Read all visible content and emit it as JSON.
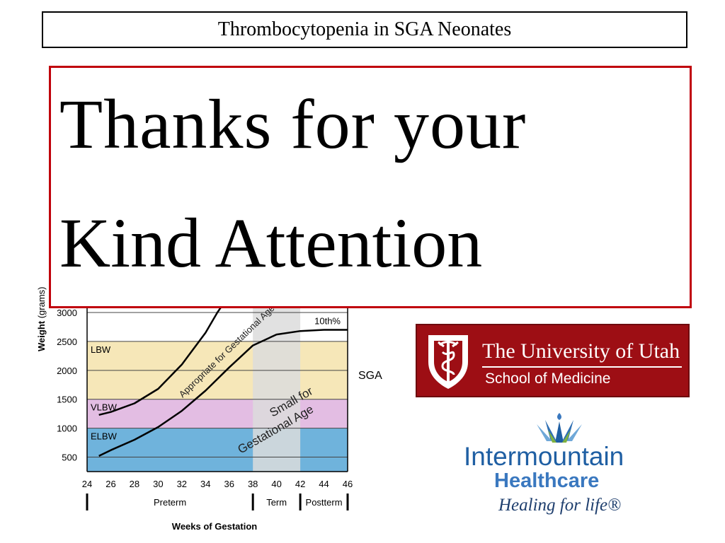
{
  "slide": {
    "header_title": "Thrombocytopenia in SGA Neonates",
    "thanks_line1": "Thanks for your",
    "thanks_line2": "Kind Attention"
  },
  "chart_data": {
    "type": "line",
    "title": "",
    "xlabel": "Weeks of Gestation",
    "ylabel": "Weight (grams)",
    "xlim": [
      24,
      46
    ],
    "ylim": [
      250,
      3000
    ],
    "x_ticks": [
      24,
      26,
      28,
      30,
      32,
      34,
      36,
      38,
      40,
      42,
      44,
      46
    ],
    "y_ticks": [
      500,
      1000,
      1500,
      2000,
      2500,
      3000
    ],
    "bands": [
      {
        "label": "LBW",
        "y_range": [
          1500,
          2500
        ],
        "color": "#f6e7b8"
      },
      {
        "label": "VLBW",
        "y_range": [
          1000,
          1500
        ],
        "color": "#e3bde3"
      },
      {
        "label": "ELBW",
        "y_range": [
          250,
          1000
        ],
        "color": "#6fb3dc"
      }
    ],
    "term_band_x": [
      38,
      42
    ],
    "term_band_color": "#dcdcdc",
    "series": [
      {
        "name": "10th%",
        "x": [
          25,
          26,
          28,
          30,
          32,
          34,
          36,
          38,
          40,
          42,
          44,
          46
        ],
        "y": [
          520,
          620,
          800,
          1020,
          1300,
          1650,
          2050,
          2430,
          2620,
          2680,
          2700,
          2700
        ]
      },
      {
        "name": "",
        "x": [
          25,
          26,
          28,
          30,
          32,
          34,
          35,
          36
        ],
        "y": [
          1230,
          1280,
          1430,
          1680,
          2100,
          2650,
          3000,
          3300
        ]
      }
    ],
    "annotations": {
      "agа": "Appropriate for Gestational Age",
      "sga_curve": "Small for Gestational Age",
      "sga_side": "SGA"
    },
    "period_labels": [
      "Preterm",
      "Term",
      "Postterm"
    ]
  },
  "logos": {
    "utah_name": "The University of Utah",
    "utah_school": "School of Medicine",
    "ih_name1": "Intermountain",
    "ih_name2": "Healthcare",
    "ih_tagline": "Healing for life®",
    "utah_color": "#9d0e14",
    "ih_color": "#1f5fa3"
  }
}
